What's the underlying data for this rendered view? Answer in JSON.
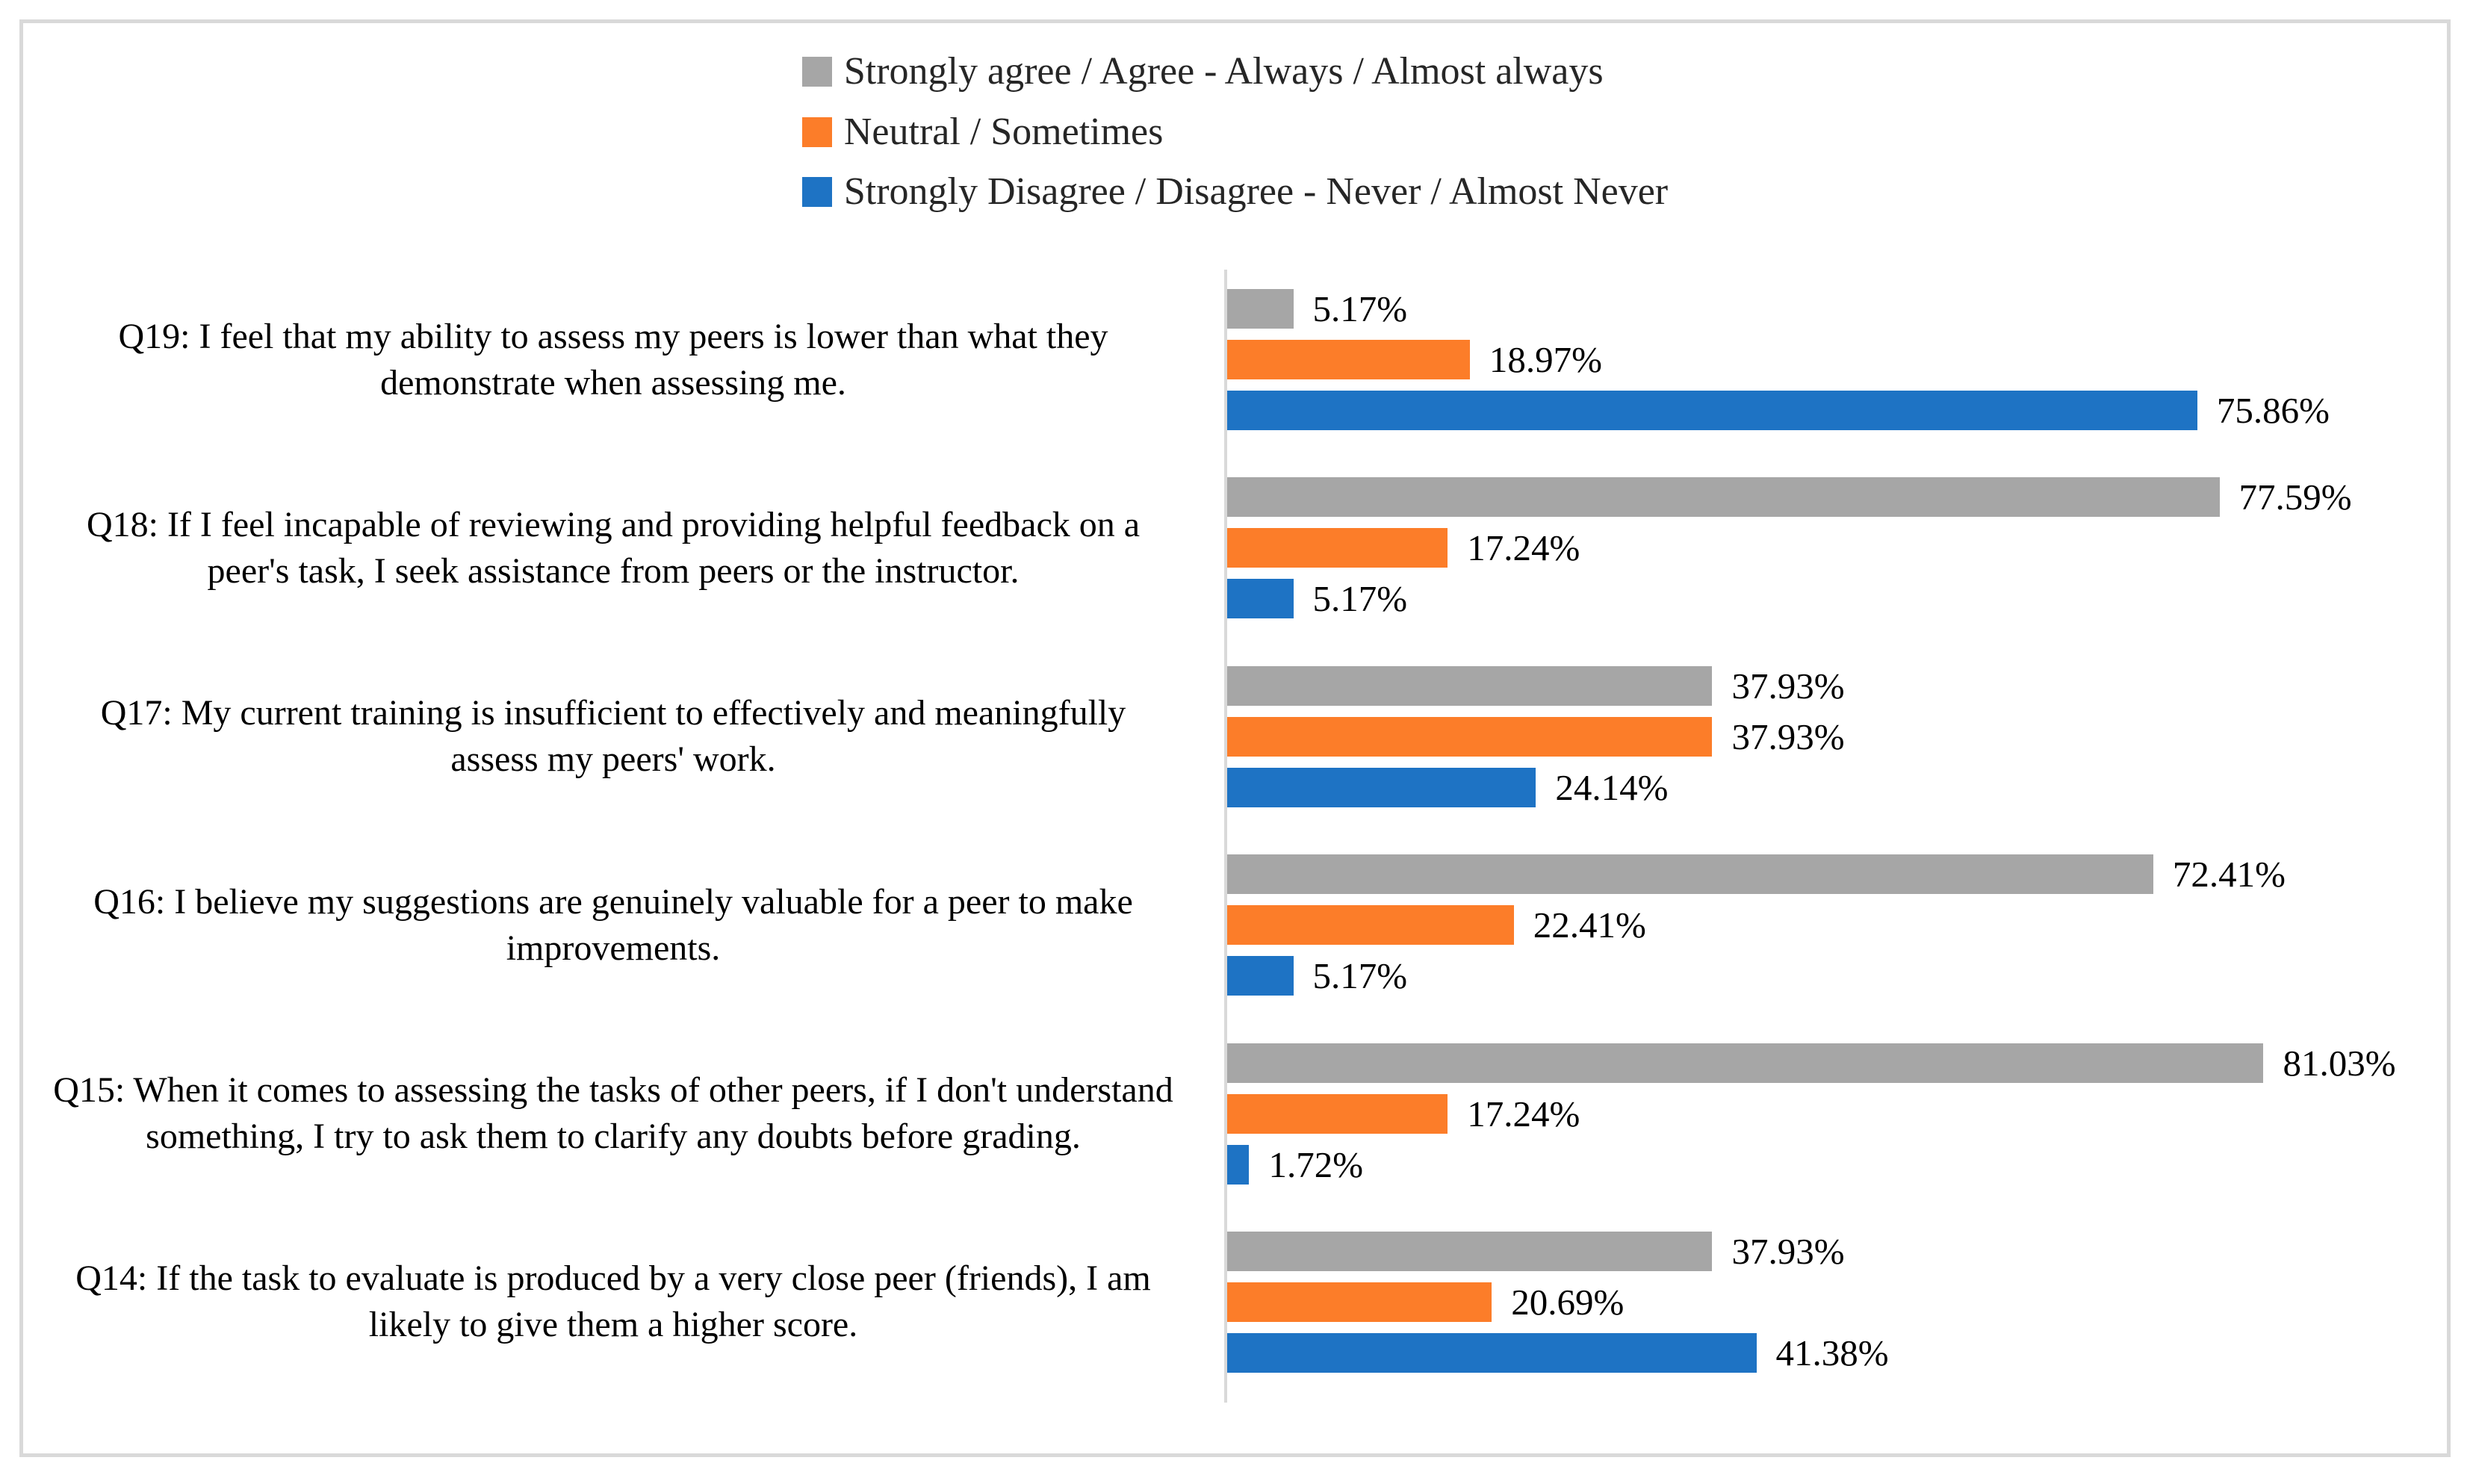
{
  "chart_data": {
    "type": "bar",
    "orientation": "horizontal",
    "title": "",
    "xlabel": "",
    "ylabel": "",
    "unit": "%",
    "xlim": [
      0,
      95
    ],
    "grid": false,
    "legend_position": "top",
    "axis_color": "#d9d9d9",
    "categories": [
      "Q19: I feel that my ability to assess my peers is lower than what they demonstrate when assessing me.",
      "Q18: If I feel incapable of reviewing and providing helpful feedback on a peer's task, I seek assistance from peers or the instructor.",
      "Q17: My current training is insufficient to effectively and meaningfully assess my peers' work.",
      "Q16: I believe my suggestions are genuinely valuable for a peer to make improvements.",
      "Q15: When it comes to assessing the tasks of other peers, if I don't understand something, I try to ask them to clarify any doubts before grading.",
      "Q14: If the task to evaluate is produced by a very close peer (friends), I am likely to give them a higher score."
    ],
    "series": [
      {
        "name": "Strongly agree / Agree - Always / Almost always",
        "color": "#a6a6a6",
        "values": [
          5.17,
          77.59,
          37.93,
          72.41,
          81.03,
          37.93
        ]
      },
      {
        "name": "Neutral / Sometimes",
        "color": "#fc7d29",
        "values": [
          18.97,
          17.24,
          37.93,
          22.41,
          17.24,
          20.69
        ]
      },
      {
        "name": "Strongly Disagree / Disagree - Never / Almost Never",
        "color": "#1e73c4",
        "values": [
          75.86,
          5.17,
          24.14,
          5.17,
          1.72,
          41.38
        ]
      }
    ],
    "value_label_format": "0.00%"
  }
}
